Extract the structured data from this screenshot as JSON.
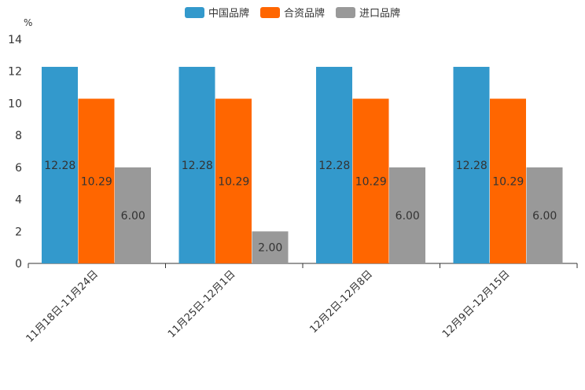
{
  "chart_data": {
    "type": "bar",
    "unit": "%",
    "categories": [
      "11月18日-11月24日",
      "11月25日-12月1日",
      "12月2日-12月8日",
      "12月9日-12月15日"
    ],
    "series": [
      {
        "name": "中国品牌",
        "color": "#3399CC",
        "values": [
          12.28,
          12.28,
          12.28,
          12.28
        ]
      },
      {
        "name": "合资品牌",
        "color": "#FF6600",
        "values": [
          10.29,
          10.29,
          10.29,
          10.29
        ]
      },
      {
        "name": "进口品牌",
        "color": "#999999",
        "values": [
          6.0,
          2.0,
          6.0,
          6.0
        ]
      }
    ],
    "ylim": [
      0,
      14
    ],
    "yticks": [
      0,
      2,
      4,
      6,
      8,
      10,
      12,
      14
    ],
    "legend_position": "top-center",
    "value_labels": [
      [
        "12.28",
        "12.28",
        "12.28",
        "12.28"
      ],
      [
        "10.29",
        "10.29",
        "10.29",
        "10.29"
      ],
      [
        "6.00",
        "2.00",
        "6.00",
        "6.00"
      ]
    ]
  }
}
